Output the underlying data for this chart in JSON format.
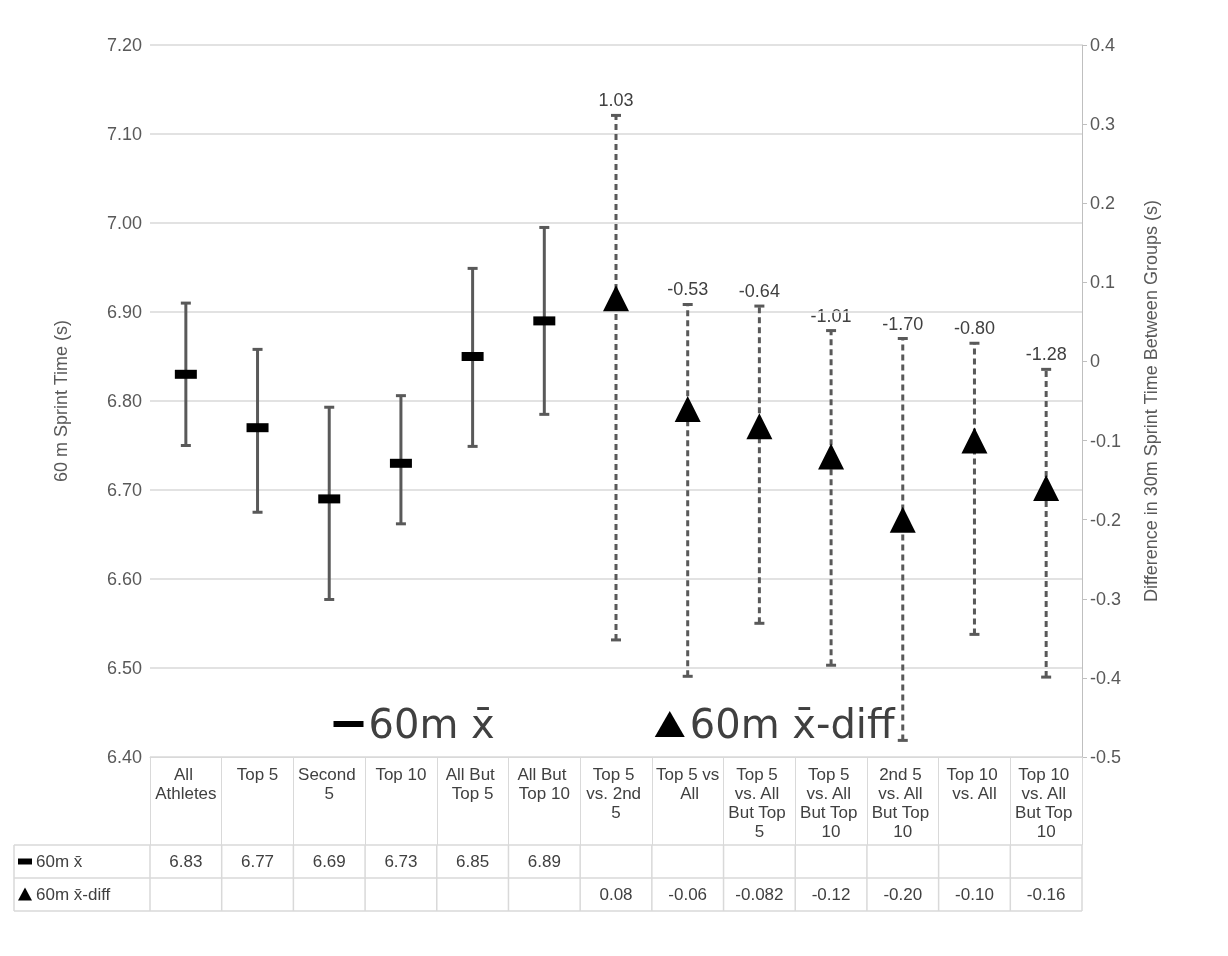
{
  "chart_data": {
    "type": "scatter",
    "ylabel": "60 m Sprint Time (s)",
    "y2label": "Difference in 30m Sprint Time Between Groups (s)",
    "categories": [
      "All Athletes",
      "Top 5",
      "Second 5",
      "Top 10",
      "All But Top 5",
      "All But Top 10",
      "Top 5 vs. 2nd 5",
      "Top 5 vs All",
      "Top 5 vs. All But Top 5",
      "Top 5 vs. All But Top 10",
      "2nd 5 vs. All But Top 10",
      "Top 10 vs. All",
      "Top 10 vs. All But Top 10"
    ],
    "series": [
      {
        "name": "60m x̄",
        "color": "#000000",
        "values": [
          6.83,
          6.77,
          6.69,
          6.73,
          6.85,
          6.89,
          null,
          null,
          null,
          null,
          null,
          null,
          null
        ],
        "errors": [
          [
            6.75,
            6.91
          ],
          [
            6.675,
            6.858
          ],
          [
            6.577,
            6.793
          ],
          [
            6.662,
            6.806
          ],
          [
            6.749,
            6.949
          ],
          [
            6.785,
            6.995
          ],
          null,
          null,
          null,
          null,
          null,
          null,
          null
        ]
      },
      {
        "name": "60m x̄-diff",
        "color": "#000000",
        "axis": "y2",
        "marker": "triangle",
        "line_style": "dashed",
        "values": [
          null,
          null,
          null,
          null,
          null,
          null,
          0.08,
          -0.06,
          -0.082,
          -0.12,
          -0.2,
          -0.1,
          -0.16
        ],
        "value_labels": [
          null,
          null,
          null,
          null,
          null,
          null,
          "0.08",
          "-0.06",
          "-0.082",
          "-0.12",
          "-0.20",
          "-0.10",
          "-0.16"
        ],
        "errors": [
          null,
          null,
          null,
          null,
          null,
          null,
          [
            -0.352,
            0.311
          ],
          [
            -0.398,
            0.072
          ],
          [
            -0.331,
            0.07
          ],
          [
            -0.384,
            0.039
          ],
          [
            -0.479,
            0.029
          ],
          [
            -0.345,
            0.023
          ],
          [
            -0.399,
            -0.01
          ]
        ]
      }
    ],
    "ylim": [
      6.4,
      7.2
    ],
    "yticks": [
      {
        "value": 6.4,
        "label": "6.40"
      },
      {
        "value": 6.5,
        "label": "6.50"
      },
      {
        "value": 6.6,
        "label": "6.60"
      },
      {
        "value": 6.7,
        "label": "6.70"
      },
      {
        "value": 6.8,
        "label": "6.80"
      },
      {
        "value": 6.9,
        "label": "6.90"
      },
      {
        "value": 7.0,
        "label": "7.00"
      },
      {
        "value": 7.1,
        "label": "7.10"
      },
      {
        "value": 7.2,
        "label": "7.20"
      }
    ],
    "y2lim": [
      -0.5,
      0.4
    ],
    "y2ticks": [
      -0.5,
      -0.4,
      -0.3,
      -0.2,
      -0.1,
      0,
      0.1,
      0.2,
      0.3,
      0.4
    ],
    "annotations": [
      "1.03",
      "-0.53",
      "-0.64",
      "-1.01",
      "-1.70",
      "-0.80",
      "-1.28"
    ],
    "grid": "y",
    "legend": "bottom",
    "data_labels": true
  }
}
